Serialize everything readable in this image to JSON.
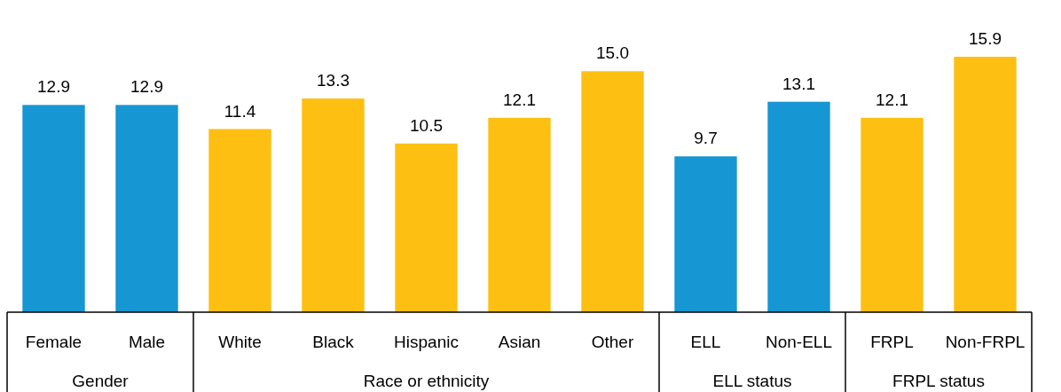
{
  "chart_data": {
    "type": "bar",
    "categories": [
      "Female",
      "Male",
      "White",
      "Black",
      "Hispanic",
      "Asian",
      "Other",
      "ELL",
      "Non-ELL",
      "FRPL",
      "Non-FRPL"
    ],
    "values": [
      12.9,
      12.9,
      11.4,
      13.3,
      10.5,
      12.1,
      15.0,
      9.7,
      13.1,
      12.1,
      15.9
    ],
    "colors": [
      "#1696d2",
      "#1696d2",
      "#fdbf11",
      "#fdbf11",
      "#fdbf11",
      "#fdbf11",
      "#fdbf11",
      "#1696d2",
      "#1696d2",
      "#fdbf11",
      "#fdbf11"
    ],
    "value_labels": [
      "12.9",
      "12.9",
      "11.4",
      "13.3",
      "10.5",
      "12.1",
      "15.0",
      "9.7",
      "13.1",
      "12.1",
      "15.9"
    ],
    "annotations": [
      "Gender",
      "Race or ethnicity",
      "ELL status",
      "FRPL status"
    ]
  }
}
